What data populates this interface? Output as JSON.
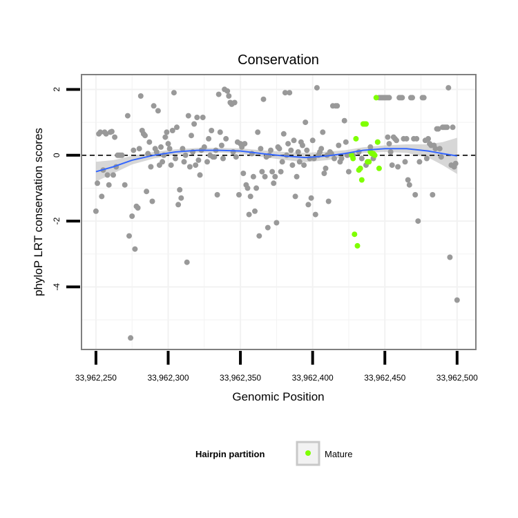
{
  "chart_data": {
    "type": "scatter",
    "title": "Conservation",
    "xlabel": "Genomic Position",
    "ylabel": "phyloP LRT conservation scores",
    "xlim": [
      33962240,
      33962513
    ],
    "ylim": [
      -5.9,
      2.45
    ],
    "x_ticks": [
      33962250,
      33962300,
      33962350,
      33962400,
      33962450,
      33962500
    ],
    "x_tick_labels": [
      "33,962,250",
      "33,962,300",
      "33,962,350",
      "33,962,400",
      "33,962,450",
      "33,962,500"
    ],
    "y_ticks": [
      2,
      0,
      -2,
      -4
    ],
    "y_tick_labels": [
      "2",
      "0",
      "-2",
      "-4"
    ],
    "grid": true,
    "reference_line": {
      "y": 0,
      "style": "dashed",
      "color": "#000000"
    },
    "colors": {
      "other": "#999999",
      "mature": "#7fff00",
      "smooth_line": "#3366ff",
      "ribbon": "#bdbdbd",
      "panel_border": "#7f7f7f",
      "grid": "#f2f2f2"
    },
    "legend": {
      "title": "Hairpin partition",
      "placement": "bottom",
      "entries": [
        {
          "label": "Mature",
          "color": "#7fff00"
        }
      ]
    },
    "series": [
      {
        "role": "other",
        "points": [
          [
            33962250,
            -1.7
          ],
          [
            33962251,
            -0.85
          ],
          [
            33962252,
            0.65
          ],
          [
            33962253,
            0.7
          ],
          [
            33962254,
            -1.25
          ],
          [
            33962255,
            -0.45
          ],
          [
            33962256,
            0.7
          ],
          [
            33962257,
            0.65
          ],
          [
            33962258,
            -0.6
          ],
          [
            33962259,
            -0.9
          ],
          [
            33962260,
            0.7
          ],
          [
            33962261,
            0.72
          ],
          [
            33962262,
            -0.6
          ],
          [
            33962263,
            0.55
          ],
          [
            33962264,
            -0.35
          ],
          [
            33962265,
            0.0
          ],
          [
            33962266,
            0.0
          ],
          [
            33962267,
            0.0
          ],
          [
            33962268,
            0.0
          ],
          [
            33962270,
            -0.9
          ],
          [
            33962272,
            1.2
          ],
          [
            33962273,
            -2.45
          ],
          [
            33962274,
            -5.55
          ],
          [
            33962275,
            -1.85
          ],
          [
            33962276,
            0.15
          ],
          [
            33962277,
            -2.85
          ],
          [
            33962278,
            -1.55
          ],
          [
            33962279,
            -1.6
          ],
          [
            33962280,
            0.2
          ],
          [
            33962281,
            1.8
          ],
          [
            33962282,
            0.75
          ],
          [
            33962283,
            0.65
          ],
          [
            33962284,
            0.6
          ],
          [
            33962285,
            -1.1
          ],
          [
            33962286,
            0.05
          ],
          [
            33962287,
            0.4
          ],
          [
            33962288,
            -0.35
          ],
          [
            33962289,
            -1.4
          ],
          [
            33962290,
            1.5
          ],
          [
            33962291,
            0.2
          ],
          [
            33962292,
            0.1
          ],
          [
            33962293,
            1.35
          ],
          [
            33962294,
            -0.3
          ],
          [
            33962295,
            0.25
          ],
          [
            33962296,
            -0.2
          ],
          [
            33962297,
            0.0
          ],
          [
            33962298,
            0.55
          ],
          [
            33962299,
            0.7
          ],
          [
            33962300,
            0.35
          ],
          [
            33962301,
            0.2
          ],
          [
            33962302,
            -0.3
          ],
          [
            33962303,
            0.75
          ],
          [
            33962304,
            1.9
          ],
          [
            33962305,
            -0.1
          ],
          [
            33962306,
            0.85
          ],
          [
            33962307,
            -1.5
          ],
          [
            33962308,
            -1.05
          ],
          [
            33962309,
            -1.3
          ],
          [
            33962310,
            0.2
          ],
          [
            33962311,
            -0.2
          ],
          [
            33962312,
            0.0
          ],
          [
            33962313,
            -3.25
          ],
          [
            33962314,
            1.2
          ],
          [
            33962315,
            -0.35
          ],
          [
            33962316,
            0.6
          ],
          [
            33962317,
            0.1
          ],
          [
            33962318,
            0.95
          ],
          [
            33962319,
            -0.3
          ],
          [
            33962320,
            1.15
          ],
          [
            33962321,
            -0.15
          ],
          [
            33962322,
            -0.6
          ],
          [
            33962323,
            0.15
          ],
          [
            33962324,
            1.15
          ],
          [
            33962325,
            0.25
          ],
          [
            33962327,
            -0.2
          ],
          [
            33962328,
            0.5
          ],
          [
            33962329,
            0.0
          ],
          [
            33962330,
            0.75
          ],
          [
            33962331,
            -0.05
          ],
          [
            33962332,
            -0.05
          ],
          [
            33962333,
            0.15
          ],
          [
            33962334,
            -1.2
          ],
          [
            33962335,
            1.85
          ],
          [
            33962336,
            0.7
          ],
          [
            33962337,
            0.3
          ],
          [
            33962338,
            -0.1
          ],
          [
            33962339,
            2.0
          ],
          [
            33962340,
            0.5
          ],
          [
            33962341,
            1.95
          ],
          [
            33962342,
            1.8
          ],
          [
            33962343,
            1.6
          ],
          [
            33962344,
            1.55
          ],
          [
            33962345,
            0.1
          ],
          [
            33962346,
            1.6
          ],
          [
            33962347,
            -0.05
          ],
          [
            33962348,
            0.4
          ],
          [
            33962349,
            -1.2
          ],
          [
            33962350,
            0.35
          ],
          [
            33962351,
            0.25
          ],
          [
            33962352,
            -0.55
          ],
          [
            33962353,
            0.35
          ],
          [
            33962354,
            -0.9
          ],
          [
            33962355,
            -1.0
          ],
          [
            33962356,
            -1.8
          ],
          [
            33962357,
            -1.25
          ],
          [
            33962358,
            0.05
          ],
          [
            33962359,
            -0.65
          ],
          [
            33962360,
            -1.7
          ],
          [
            33962361,
            -1.0
          ],
          [
            33962362,
            0.7
          ],
          [
            33962363,
            -2.45
          ],
          [
            33962364,
            0.2
          ],
          [
            33962365,
            -0.5
          ],
          [
            33962366,
            1.7
          ],
          [
            33962367,
            -0.65
          ],
          [
            33962368,
            -0.05
          ],
          [
            33962369,
            -2.2
          ],
          [
            33962370,
            0.0
          ],
          [
            33962371,
            0.15
          ],
          [
            33962372,
            -0.5
          ],
          [
            33962373,
            -0.85
          ],
          [
            33962374,
            -0.65
          ],
          [
            33962375,
            -2.05
          ],
          [
            33962376,
            0.25
          ],
          [
            33962377,
            0.2
          ],
          [
            33962378,
            -0.5
          ],
          [
            33962379,
            -0.2
          ],
          [
            33962380,
            0.65
          ],
          [
            33962381,
            1.9
          ],
          [
            33962382,
            0.0
          ],
          [
            33962383,
            0.35
          ],
          [
            33962384,
            1.9
          ],
          [
            33962385,
            0.15
          ],
          [
            33962386,
            -0.3
          ],
          [
            33962387,
            0.45
          ],
          [
            33962388,
            -1.25
          ],
          [
            33962389,
            -0.65
          ],
          [
            33962390,
            0.1
          ],
          [
            33962391,
            -0.2
          ],
          [
            33962392,
            0.4
          ],
          [
            33962393,
            0.3
          ],
          [
            33962394,
            -0.3
          ],
          [
            33962395,
            1.0
          ],
          [
            33962396,
            0.15
          ],
          [
            33962397,
            -1.5
          ],
          [
            33962398,
            -0.1
          ],
          [
            33962399,
            -1.3
          ],
          [
            33962400,
            0.45
          ],
          [
            33962401,
            -0.1
          ],
          [
            33962402,
            -1.8
          ],
          [
            33962403,
            2.05
          ],
          [
            33962404,
            0.0
          ],
          [
            33962405,
            0.1
          ],
          [
            33962406,
            0.2
          ],
          [
            33962407,
            0.7
          ],
          [
            33962408,
            -0.55
          ],
          [
            33962409,
            -0.4
          ],
          [
            33962410,
            0.0
          ],
          [
            33962411,
            -1.4
          ],
          [
            33962412,
            0.1
          ],
          [
            33962413,
            0.05
          ],
          [
            33962414,
            1.5
          ],
          [
            33962415,
            -0.1
          ],
          [
            33962416,
            1.5
          ],
          [
            33962417,
            1.5
          ],
          [
            33962418,
            0.3
          ],
          [
            33962419,
            -0.2
          ],
          [
            33962420,
            -0.1
          ],
          [
            33962422,
            1.05
          ],
          [
            33962423,
            0.4
          ],
          [
            33962424,
            0.0
          ],
          [
            33962425,
            -0.5
          ],
          [
            33962428,
            0.0
          ],
          [
            33962432,
            0.1
          ],
          [
            33962434,
            -0.1
          ],
          [
            33962437,
            -0.3
          ],
          [
            33962440,
            0.25
          ],
          [
            33962442,
            -0.1
          ],
          [
            33962445,
            0.4
          ],
          [
            33962446,
            1.75
          ],
          [
            33962447,
            1.75
          ],
          [
            33962448,
            1.75
          ],
          [
            33962449,
            1.75
          ],
          [
            33962450,
            1.75
          ],
          [
            33962451,
            1.75
          ],
          [
            33962452,
            1.75
          ],
          [
            33962453,
            1.75
          ],
          [
            33962452,
            0.55
          ],
          [
            33962453,
            0.35
          ],
          [
            33962454,
            0.1
          ],
          [
            33962455,
            -0.3
          ],
          [
            33962456,
            0.55
          ],
          [
            33962457,
            0.5
          ],
          [
            33962458,
            0.45
          ],
          [
            33962459,
            -0.35
          ],
          [
            33962460,
            1.75
          ],
          [
            33962461,
            1.75
          ],
          [
            33962462,
            1.75
          ],
          [
            33962463,
            0.5
          ],
          [
            33962464,
            -0.2
          ],
          [
            33962465,
            0.5
          ],
          [
            33962466,
            -0.75
          ],
          [
            33962467,
            -0.9
          ],
          [
            33962468,
            1.75
          ],
          [
            33962469,
            1.75
          ],
          [
            33962470,
            0.5
          ],
          [
            33962471,
            -1.2
          ],
          [
            33962472,
            0.5
          ],
          [
            33962473,
            -2.0
          ],
          [
            33962474,
            -0.2
          ],
          [
            33962476,
            1.75
          ],
          [
            33962477,
            1.75
          ],
          [
            33962478,
            0.45
          ],
          [
            33962479,
            -0.1
          ],
          [
            33962480,
            0.5
          ],
          [
            33962481,
            0.35
          ],
          [
            33962482,
            0.3
          ],
          [
            33962483,
            -1.2
          ],
          [
            33962484,
            0.3
          ],
          [
            33962485,
            0.2
          ],
          [
            33962486,
            0.8
          ],
          [
            33962487,
            0.8
          ],
          [
            33962488,
            0.2
          ],
          [
            33962489,
            -0.05
          ],
          [
            33962490,
            0.85
          ],
          [
            33962491,
            0.85
          ],
          [
            33962492,
            0.85
          ],
          [
            33962493,
            0.85
          ],
          [
            33962494,
            2.05
          ],
          [
            33962495,
            -3.1
          ],
          [
            33962496,
            -0.3
          ],
          [
            33962497,
            0.85
          ],
          [
            33962498,
            -0.35
          ],
          [
            33962499,
            -0.25
          ],
          [
            33962500,
            -4.4
          ]
        ]
      },
      {
        "name": "Mature",
        "role": "mature",
        "points": [
          [
            33962427,
            0.0
          ],
          [
            33962428,
            -0.1
          ],
          [
            33962429,
            -2.4
          ],
          [
            33962430,
            0.5
          ],
          [
            33962431,
            -2.75
          ],
          [
            33962432,
            -0.45
          ],
          [
            33962433,
            -0.4
          ],
          [
            33962434,
            -0.75
          ],
          [
            33962435,
            0.95
          ],
          [
            33962436,
            0.95
          ],
          [
            33962437,
            0.95
          ],
          [
            33962438,
            -0.2
          ],
          [
            33962439,
            -0.2
          ],
          [
            33962440,
            0.1
          ],
          [
            33962441,
            0.05
          ],
          [
            33962442,
            0.05
          ],
          [
            33962443,
            0.0
          ],
          [
            33962444,
            1.75
          ],
          [
            33962445,
            0.4
          ],
          [
            33962446,
            -0.4
          ]
        ]
      }
    ],
    "smooth": {
      "x": [
        33962250,
        33962262,
        33962275,
        33962290,
        33962305,
        33962320,
        33962335,
        33962350,
        33962365,
        33962380,
        33962395,
        33962410,
        33962422,
        33962435,
        33962450,
        33962465,
        33962480,
        33962490,
        33962500
      ],
      "y": [
        -0.5,
        -0.35,
        -0.15,
        0.0,
        0.1,
        0.15,
        0.15,
        0.13,
        0.05,
        -0.02,
        -0.07,
        -0.02,
        0.05,
        0.15,
        0.2,
        0.2,
        0.13,
        0.05,
        -0.02
      ],
      "se": [
        0.3,
        0.2,
        0.13,
        0.1,
        0.08,
        0.07,
        0.07,
        0.08,
        0.1,
        0.12,
        0.14,
        0.13,
        0.1,
        0.09,
        0.1,
        0.13,
        0.2,
        0.35,
        0.55
      ]
    }
  }
}
